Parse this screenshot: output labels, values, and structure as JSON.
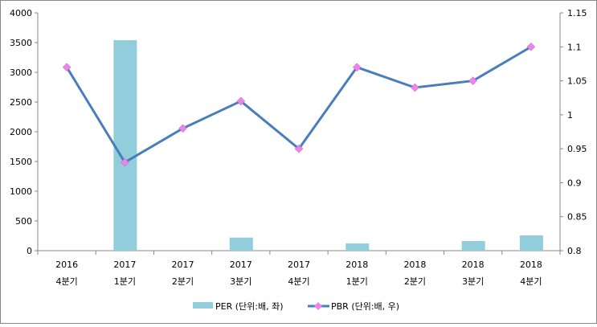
{
  "chart_data": {
    "type": "bar+line",
    "categories": [
      [
        "2016",
        "4분기"
      ],
      [
        "2017",
        "1분기"
      ],
      [
        "2017",
        "2분기"
      ],
      [
        "2017",
        "3분기"
      ],
      [
        "2017",
        "4분기"
      ],
      [
        "2018",
        "1분기"
      ],
      [
        "2018",
        "2분기"
      ],
      [
        "2018",
        "3분기"
      ],
      [
        "2018",
        "4분기"
      ]
    ],
    "series": [
      {
        "name": "PER (단위:배, 좌)",
        "type": "bar",
        "axis": "left",
        "color": "#92cddc",
        "values": [
          0,
          3540,
          0,
          220,
          0,
          122,
          0,
          162,
          257
        ]
      },
      {
        "name": "PBR (단위:배, 우)",
        "type": "line",
        "axis": "right",
        "color": "#4a7ebb",
        "marker_color": "#ee82ee",
        "values": [
          1.07,
          0.93,
          0.98,
          1.02,
          0.95,
          1.07,
          1.04,
          1.05,
          1.1
        ]
      }
    ],
    "left_axis": {
      "min": 0,
      "max": 4000,
      "ticks": [
        "0",
        "500",
        "1000",
        "1500",
        "2000",
        "2500",
        "3000",
        "3500",
        "4000"
      ]
    },
    "right_axis": {
      "min": 0.8,
      "max": 1.15,
      "ticks": [
        "0.8",
        "0.85",
        "0.9",
        "0.95",
        "1",
        "1.05",
        "1.1",
        "1.15"
      ]
    },
    "grid": false,
    "legend": "bottom"
  }
}
